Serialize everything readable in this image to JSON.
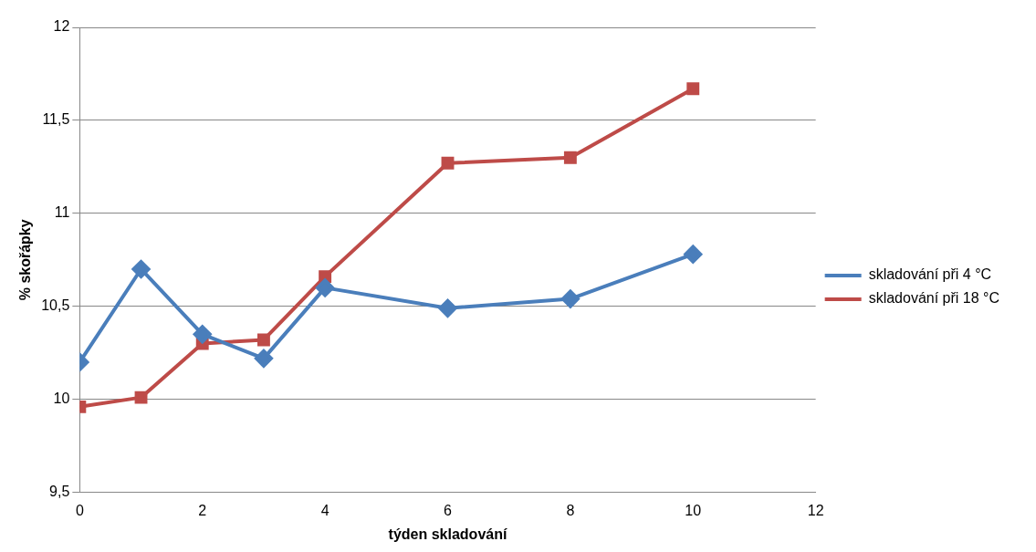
{
  "chart_data": {
    "type": "line",
    "xlabel": "týden skladování",
    "ylabel": "% skořápky",
    "xlim": [
      0,
      12
    ],
    "xticks": [
      0,
      2,
      4,
      6,
      8,
      10,
      12
    ],
    "ylim": [
      9.5,
      12
    ],
    "yticks": [
      {
        "value": 9.5,
        "label": "9,5"
      },
      {
        "value": 10,
        "label": "10"
      },
      {
        "value": 10.5,
        "label": "10,5"
      },
      {
        "value": 11,
        "label": "11"
      },
      {
        "value": 11.5,
        "label": "11,5"
      },
      {
        "value": 12,
        "label": "12"
      }
    ],
    "x": [
      0,
      1,
      2,
      3,
      4,
      6,
      8,
      10
    ],
    "series": [
      {
        "name": "skladování při 4 °C",
        "color": "#4a7ebb",
        "marker": "diamond",
        "values": [
          10.2,
          10.7,
          10.35,
          10.22,
          10.6,
          10.49,
          10.54,
          10.78
        ]
      },
      {
        "name": "skladování při 18 °C",
        "color": "#be4b48",
        "marker": "square",
        "values": [
          9.96,
          10.01,
          10.3,
          10.32,
          10.66,
          11.27,
          11.3,
          11.67
        ]
      }
    ],
    "grid": "y",
    "legend": "right",
    "line_style": "solid"
  }
}
